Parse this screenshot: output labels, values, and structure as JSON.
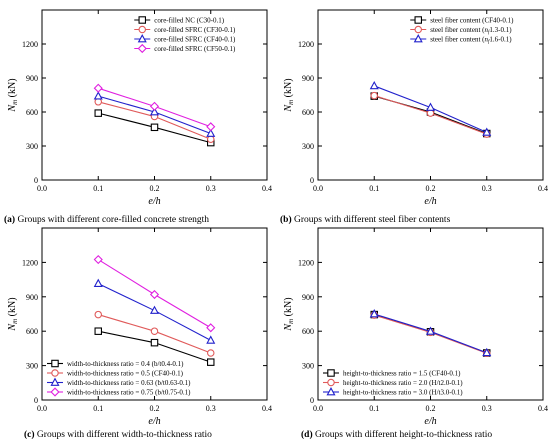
{
  "chart_data": [
    {
      "type": "line",
      "panel": "a",
      "caption_letter": "(a)",
      "caption_text": " Groups with different core-filled concrete strength",
      "xlabel": "e/h",
      "ylabel_main": "N",
      "ylabel_sub": "m",
      "ylabel_unit": " (kN)",
      "xlim": [
        0.0,
        0.4
      ],
      "ylim": [
        0,
        1500
      ],
      "xticks": [
        0.0,
        0.1,
        0.2,
        0.3,
        0.4
      ],
      "xtick_labels": [
        "0.0",
        "0.1",
        "0.2",
        "0.3",
        "0.4"
      ],
      "yticks": [
        0,
        300,
        600,
        900,
        1200
      ],
      "ytick_labels": [
        "0",
        "300",
        "600",
        "900",
        "1200"
      ],
      "legend_position": "top-right",
      "series": [
        {
          "name": "core-filled NC (C30-0.1)",
          "x": [
            0.1,
            0.2,
            0.3
          ],
          "y": [
            590,
            465,
            330
          ],
          "color": "#000000",
          "marker": "square"
        },
        {
          "name": "core-filled SFRC (CF30-0.1)",
          "x": [
            0.1,
            0.2,
            0.3
          ],
          "y": [
            690,
            560,
            360
          ],
          "color": "#e05a5a",
          "marker": "circle"
        },
        {
          "name": "core-filled SFRC (CF40-0.1)",
          "x": [
            0.1,
            0.2,
            0.3
          ],
          "y": [
            740,
            600,
            410
          ],
          "color": "#2222cc",
          "marker": "triangle"
        },
        {
          "name": "core-filled SFRC (CF50-0.1)",
          "x": [
            0.1,
            0.2,
            0.3
          ],
          "y": [
            810,
            650,
            470
          ],
          "color": "#e020e0",
          "marker": "diamond"
        }
      ]
    },
    {
      "type": "line",
      "panel": "b",
      "caption_letter": "(b)",
      "caption_text": " Groups with different steel fiber contents",
      "xlabel": "e/h",
      "ylabel_main": "N",
      "ylabel_sub": "m",
      "ylabel_unit": " (kN)",
      "xlim": [
        0.0,
        0.4
      ],
      "ylim": [
        0,
        1500
      ],
      "xticks": [
        0.0,
        0.1,
        0.2,
        0.3,
        0.4
      ],
      "xtick_labels": [
        "0.0",
        "0.1",
        "0.2",
        "0.3",
        "0.4"
      ],
      "yticks": [
        0,
        300,
        600,
        900,
        1200
      ],
      "ytick_labels": [
        "0",
        "300",
        "600",
        "900",
        "1200"
      ],
      "legend_position": "top-right",
      "series": [
        {
          "name": "steel fiber content (CF40-0.1)",
          "x": [
            0.1,
            0.2,
            0.3
          ],
          "y": [
            740,
            600,
            410
          ],
          "color": "#000000",
          "marker": "square"
        },
        {
          "name": "steel fiber content (nf1.3-0.1)",
          "x": [
            0.1,
            0.2,
            0.3
          ],
          "y": [
            745,
            590,
            405
          ],
          "color": "#e05a5a",
          "marker": "circle"
        },
        {
          "name": "steel fiber content (nf1.6-0.1)",
          "x": [
            0.1,
            0.2,
            0.3
          ],
          "y": [
            830,
            640,
            420
          ],
          "color": "#2222cc",
          "marker": "triangle"
        }
      ]
    },
    {
      "type": "line",
      "panel": "c",
      "caption_letter": "(c)",
      "caption_text": " Groups with different width-to-thickness ratio",
      "xlabel": "e/h",
      "ylabel_main": "N",
      "ylabel_sub": "m",
      "ylabel_unit": " (kN)",
      "xlim": [
        0.0,
        0.4
      ],
      "ylim": [
        0,
        1500
      ],
      "xticks": [
        0.0,
        0.1,
        0.2,
        0.3,
        0.4
      ],
      "xtick_labels": [
        "0.0",
        "0.1",
        "0.2",
        "0.3",
        "0.4"
      ],
      "yticks": [
        0,
        300,
        600,
        900,
        1200
      ],
      "ytick_labels": [
        "0",
        "300",
        "600",
        "900",
        "1200"
      ],
      "legend_position": "bottom-left",
      "series": [
        {
          "name": "width-to-thickness ratio = 0.4 (b/t0.4-0.1)",
          "x": [
            0.1,
            0.2,
            0.3
          ],
          "y": [
            600,
            500,
            330
          ],
          "color": "#000000",
          "marker": "square"
        },
        {
          "name": "width-to-thickness ratio = 0.5 (CF40-0.1)",
          "x": [
            0.1,
            0.2,
            0.3
          ],
          "y": [
            745,
            600,
            410
          ],
          "color": "#e05a5a",
          "marker": "circle"
        },
        {
          "name": "width-to-thickness ratio = 0.63 (b/t0.63-0.1)",
          "x": [
            0.1,
            0.2,
            0.3
          ],
          "y": [
            1015,
            780,
            520
          ],
          "color": "#2222cc",
          "marker": "triangle"
        },
        {
          "name": "width-to-thickness ratio = 0.75 (b/t0.75-0.1)",
          "x": [
            0.1,
            0.2,
            0.3
          ],
          "y": [
            1225,
            920,
            630
          ],
          "color": "#e020e0",
          "marker": "diamond"
        }
      ]
    },
    {
      "type": "line",
      "panel": "d",
      "caption_letter": "(d)",
      "caption_text": " Groups with different height-to-thickness ratio",
      "xlabel": "e/h",
      "ylabel_main": "N",
      "ylabel_sub": "m",
      "ylabel_unit": " (kN)",
      "xlim": [
        0.0,
        0.4
      ],
      "ylim": [
        0,
        1500
      ],
      "xticks": [
        0.0,
        0.1,
        0.2,
        0.3,
        0.4
      ],
      "xtick_labels": [
        "0.0",
        "0.1",
        "0.2",
        "0.3",
        "0.4"
      ],
      "yticks": [
        0,
        300,
        600,
        900,
        1200
      ],
      "ytick_labels": [
        "0",
        "300",
        "600",
        "900",
        "1200"
      ],
      "legend_position": "bottom-left",
      "series": [
        {
          "name": "height-to-thickness ratio = 1.5 (CF40-0.1)",
          "x": [
            0.1,
            0.2,
            0.3
          ],
          "y": [
            745,
            595,
            410
          ],
          "color": "#000000",
          "marker": "square"
        },
        {
          "name": "height-to-thickness ratio = 2.0 (H/t2.0-0.1)",
          "x": [
            0.1,
            0.2,
            0.3
          ],
          "y": [
            740,
            590,
            408
          ],
          "color": "#e05a5a",
          "marker": "circle"
        },
        {
          "name": "height-to-thickness ratio = 3.0 (H/t3.0-0.1)",
          "x": [
            0.1,
            0.2,
            0.3
          ],
          "y": [
            750,
            598,
            412
          ],
          "color": "#2222cc",
          "marker": "triangle"
        }
      ]
    }
  ]
}
